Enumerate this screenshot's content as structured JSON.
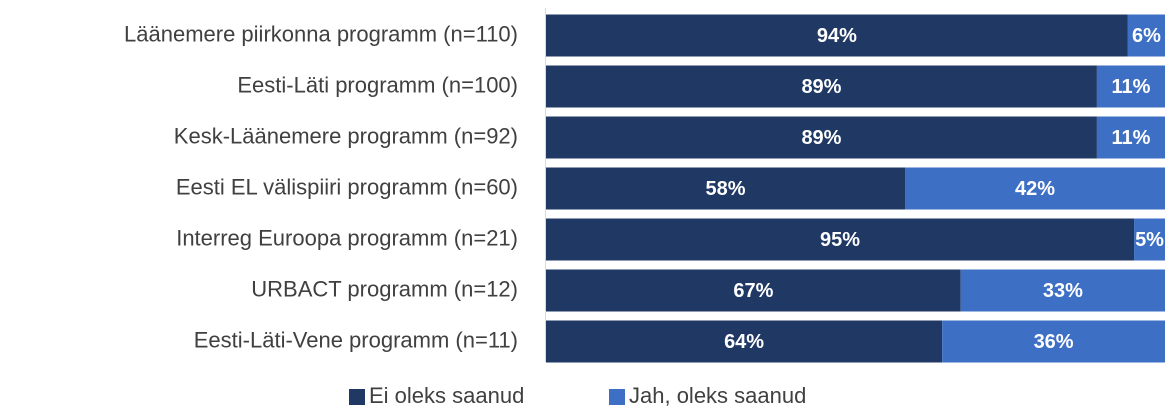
{
  "chart_data": {
    "type": "stacked_barh",
    "categories": [
      "Läänemere piirkonna programm (n=110)",
      "Eesti-Läti programm (n=100)",
      "Kesk-Läänemere programm (n=92)",
      "Eesti EL välispiiri programm (n=60)",
      "Interreg Euroopa programm (n=21)",
      "URBACT programm (n=12)",
      "Eesti-Läti-Vene programm (n=11)"
    ],
    "series": [
      {
        "name": "Ei oleks saanud",
        "color": "#1f3864",
        "values": [
          94,
          89,
          89,
          58,
          95,
          67,
          64
        ],
        "value_labels": [
          "94%",
          "89%",
          "89%",
          "58%",
          "95%",
          "67%",
          "64%"
        ]
      },
      {
        "name": "Jah, oleks saanud",
        "color": "#3d6fc4",
        "values": [
          6,
          11,
          11,
          42,
          5,
          33,
          36
        ],
        "value_labels": [
          "6%",
          "11%",
          "11%",
          "42%",
          "5%",
          "33%",
          "36%"
        ]
      }
    ],
    "xlim": [
      0,
      100
    ],
    "legend": "bottom"
  }
}
